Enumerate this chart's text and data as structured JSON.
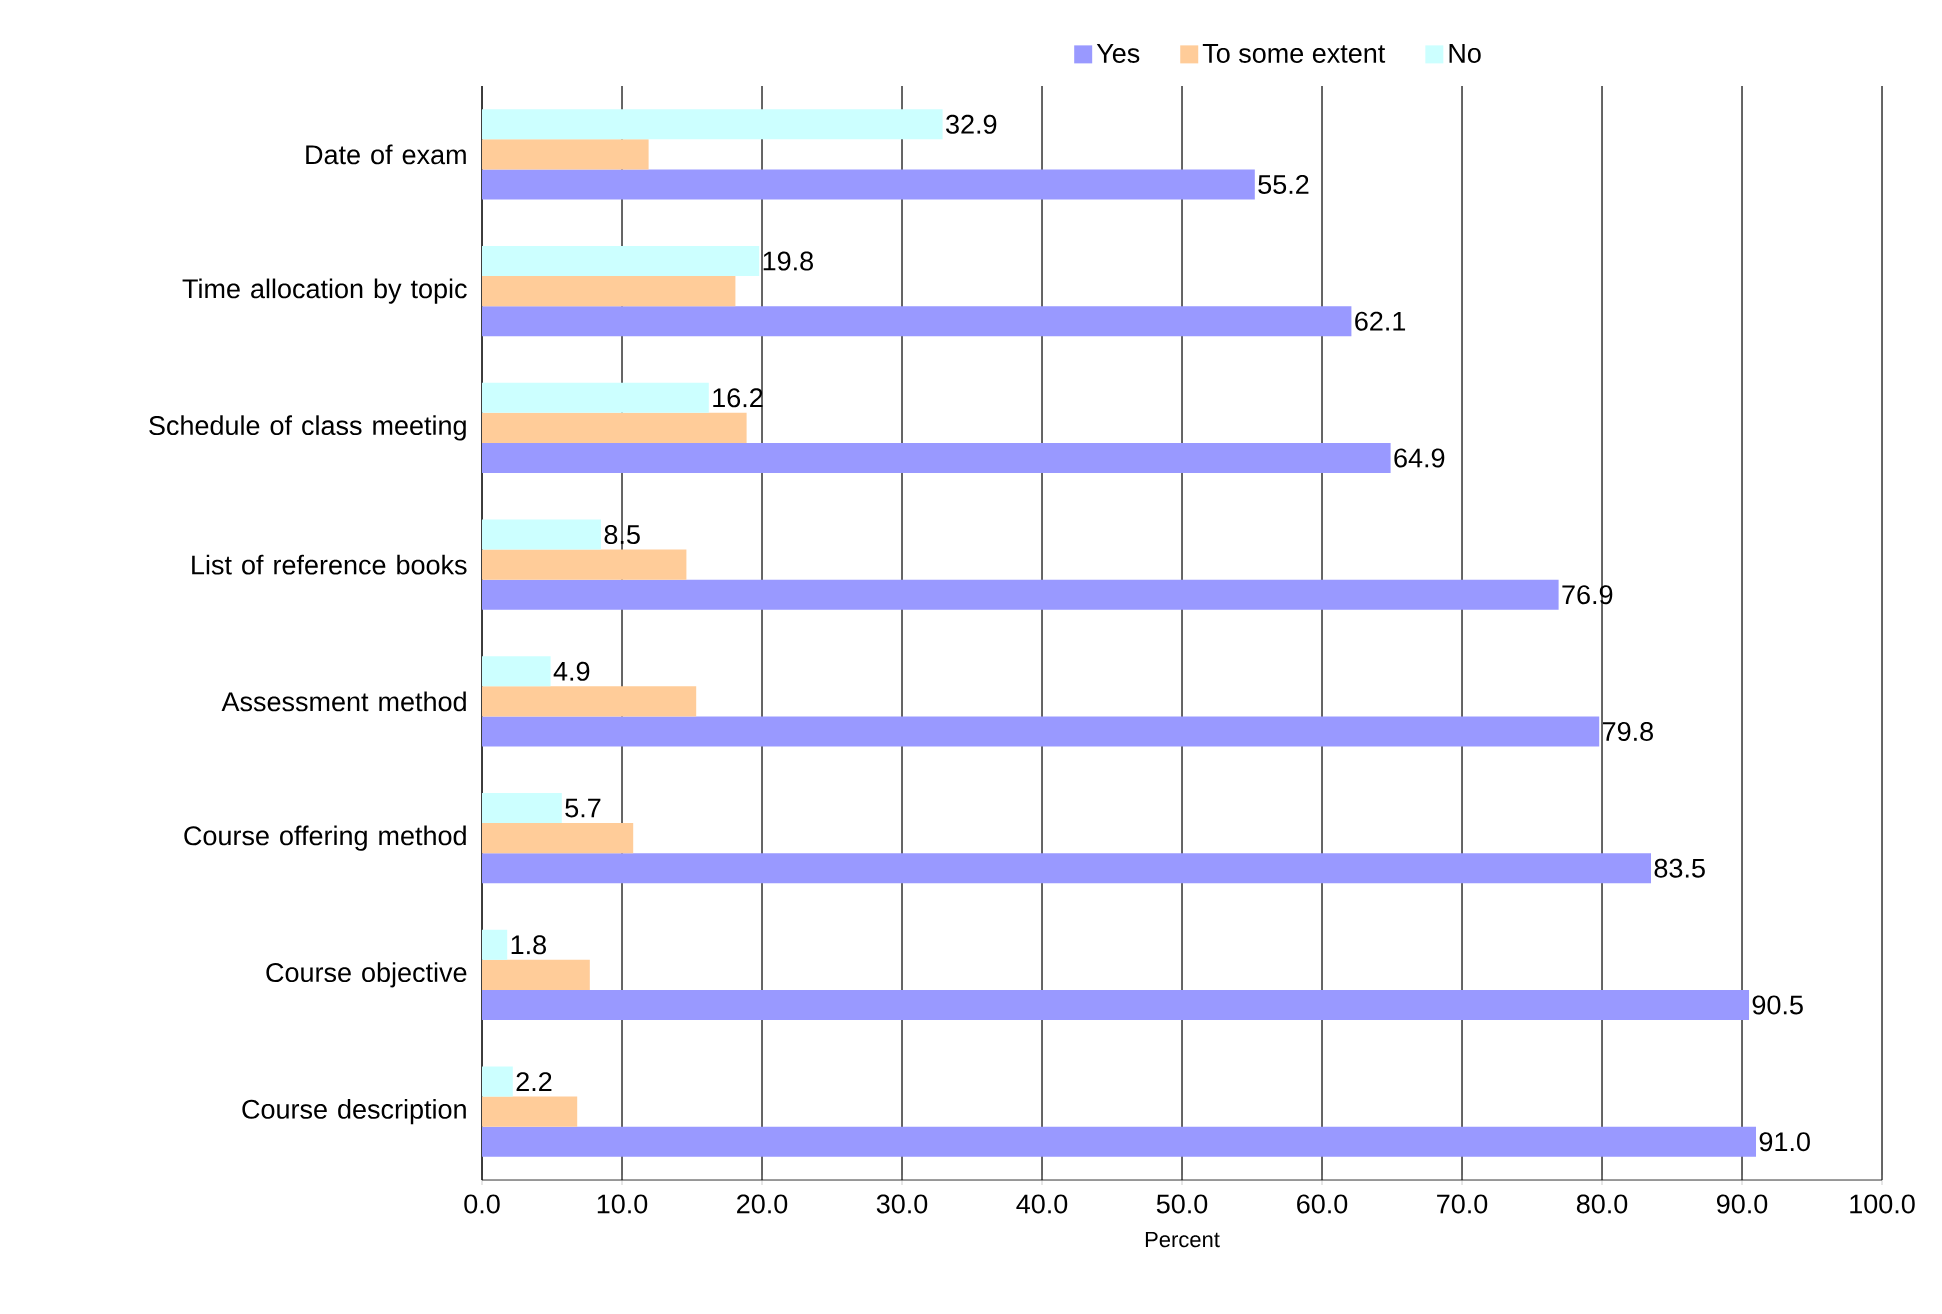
{
  "chart_data": {
    "type": "bar",
    "orientation": "horizontal",
    "xlabel": "Percent",
    "categories": [
      "Date of exam",
      "Time allocation by topic",
      "Schedule of class meeting",
      "List of reference books",
      "Assessment method",
      "Course offering method",
      "Course objective",
      "Course description"
    ],
    "series": [
      {
        "name": "Yes",
        "color": "#9999ff",
        "values": [
          55.2,
          62.1,
          64.9,
          76.9,
          79.8,
          83.5,
          90.5,
          91.0
        ],
        "value_labels": [
          "55.2",
          "62.1",
          "64.9",
          "76.9",
          "79.8",
          "83.5",
          "90.5",
          "91.0"
        ]
      },
      {
        "name": "To some extent",
        "color": "#ffcc99",
        "values": [
          11.9,
          18.1,
          18.9,
          14.6,
          15.3,
          10.8,
          7.7,
          6.8
        ]
      },
      {
        "name": "No",
        "color": "#ccffff",
        "values": [
          32.9,
          19.8,
          16.2,
          8.5,
          4.9,
          5.7,
          1.8,
          2.2
        ],
        "value_labels": [
          "32.9",
          "19.8",
          "16.2",
          "8.5",
          "4.9",
          "5.7",
          "1.8",
          "2.2"
        ]
      }
    ],
    "xlim": [
      0,
      100
    ],
    "xticks": [
      {
        "value": 0,
        "label": "0.0"
      },
      {
        "value": 10,
        "label": "10.0"
      },
      {
        "value": 20,
        "label": "20.0"
      },
      {
        "value": 30,
        "label": "30.0"
      },
      {
        "value": 40,
        "label": "40.0"
      },
      {
        "value": 50,
        "label": "50.0"
      },
      {
        "value": 60,
        "label": "60.0"
      },
      {
        "value": 70,
        "label": "70.0"
      },
      {
        "value": 80,
        "label": "80.0"
      },
      {
        "value": 90,
        "label": "90.0"
      },
      {
        "value": 100,
        "label": "100.0"
      }
    ],
    "grid": "x",
    "legend": "top"
  }
}
